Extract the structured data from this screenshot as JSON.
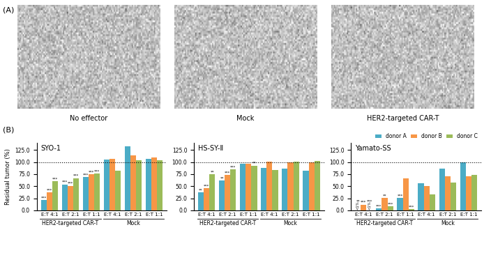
{
  "panel_labels": [
    "(A)",
    "(B)"
  ],
  "images": [
    "No effector",
    "Mock",
    "HER2-targeted CAR-T"
  ],
  "chart_data": [
    {
      "type": "bar",
      "title": "SYO-1",
      "ylabel": "Residual tumor (%)",
      "groups": [
        {
          "name": "HER2-targeted CAR-T",
          "categories": [
            "E:T 4:1",
            "E:T 2:1",
            "E:T 1:1"
          ]
        },
        {
          "name": "Mock",
          "categories": [
            "E:T 4:1",
            "E:T 2:1",
            "E:T 1:1"
          ]
        }
      ],
      "ylim": [
        0,
        140
      ],
      "yticks": [
        {
          "value": 0,
          "label": "0.0"
        },
        {
          "value": 25,
          "label": "25.0"
        },
        {
          "value": 50,
          "label": "50.0"
        },
        {
          "value": 75,
          "label": "75.0"
        },
        {
          "value": 100,
          "label": "100.0"
        },
        {
          "value": 125,
          "label": "125.0"
        }
      ],
      "reference_line": 100,
      "series": [
        {
          "name": "donor A",
          "color": "#4bacc6",
          "values": [
            21,
            54,
            69,
            105,
            133,
            107
          ],
          "stars": [
            "***",
            "***",
            "***",
            null,
            null,
            null
          ]
        },
        {
          "name": "donor B",
          "color": "#f79646",
          "values": [
            37,
            51,
            75,
            107,
            114,
            109
          ],
          "stars": [
            "***",
            "***",
            "***",
            null,
            null,
            null
          ]
        },
        {
          "name": "donor C",
          "color": "#9bbb59",
          "values": [
            60,
            67,
            76,
            82,
            104,
            104
          ],
          "stars": [
            "***",
            "***",
            "***",
            null,
            null,
            null
          ]
        }
      ]
    },
    {
      "type": "bar",
      "title": "HS-SY-Ⅱ",
      "groups": [
        {
          "name": "HER2-targeted CAR-T",
          "categories": [
            "E:T 4:1",
            "E:T 2:1",
            "E:T 1:1"
          ]
        },
        {
          "name": "Mock",
          "categories": [
            "E:T 4:1",
            "E:T 2:1",
            "E:T 1:1"
          ]
        }
      ],
      "ylim": [
        0,
        140
      ],
      "yticks": [
        {
          "value": 0,
          "label": "0.0"
        },
        {
          "value": 25,
          "label": "25.0"
        },
        {
          "value": 50,
          "label": "50.0"
        },
        {
          "value": 75,
          "label": "75.0"
        },
        {
          "value": 100,
          "label": "100.0"
        },
        {
          "value": 125,
          "label": "125.0"
        }
      ],
      "reference_line": 100,
      "series": [
        {
          "name": "donor A",
          "color": "#4bacc6",
          "values": [
            37,
            62,
            97,
            88,
            87,
            82
          ],
          "stars": [
            "**",
            "**",
            null,
            null,
            null,
            null
          ]
        },
        {
          "name": "donor B",
          "color": "#f79646",
          "values": [
            46,
            73,
            96,
            101,
            99,
            99
          ],
          "stars": [
            "***",
            "***",
            null,
            null,
            null,
            null
          ]
        },
        {
          "name": "donor C",
          "color": "#9bbb59",
          "values": [
            75,
            85,
            93,
            84,
            101,
            103
          ],
          "stars": [
            "**",
            "***",
            "**",
            null,
            null,
            null
          ]
        }
      ]
    },
    {
      "type": "bar",
      "title": "Yamato-SS",
      "legend": "upper right",
      "groups": [
        {
          "name": "HER2-targeted CAR-T",
          "categories": [
            "E:T 4:1",
            "E:T 2:1",
            "E:T 1:1"
          ]
        },
        {
          "name": "Mock",
          "categories": [
            "E:T 4:1",
            "E:T 2:1",
            "E:T 1:1"
          ]
        }
      ],
      "ylim": [
        0,
        140
      ],
      "yticks": [
        {
          "value": 0,
          "label": "0.0"
        },
        {
          "value": 25,
          "label": "25.0"
        },
        {
          "value": 50,
          "label": "50.0"
        },
        {
          "value": 75,
          "label": "75.0"
        },
        {
          "value": 100,
          "label": "100.0"
        },
        {
          "value": 125,
          "label": "125.0"
        }
      ],
      "reference_line": 100,
      "series": [
        {
          "name": "donor A",
          "color": "#4bacc6",
          "values": [
            0.5,
            4,
            26,
            56,
            86,
            100
          ],
          "value_labels": [
            "<1%",
            null,
            null,
            null,
            null,
            null
          ],
          "stars": [
            "**",
            "***",
            "***",
            null,
            null,
            null
          ]
        },
        {
          "name": "donor B",
          "color": "#f79646",
          "values": [
            12,
            26,
            66,
            51,
            70,
            71
          ],
          "stars": [
            "***",
            "**",
            null,
            null,
            null,
            null
          ]
        },
        {
          "name": "donor C",
          "color": "#9bbb59",
          "values": [
            0.5,
            8,
            3,
            33,
            58,
            74
          ],
          "value_labels": [
            "<1%",
            null,
            null,
            null,
            null,
            null
          ],
          "stars": [
            "***",
            "***",
            "***",
            null,
            null,
            null
          ]
        }
      ]
    }
  ]
}
